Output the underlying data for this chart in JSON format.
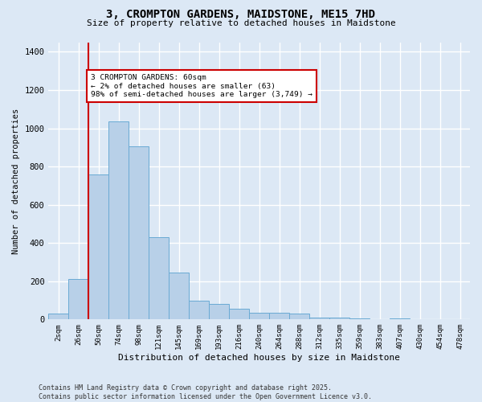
{
  "title": "3, CROMPTON GARDENS, MAIDSTONE, ME15 7HD",
  "subtitle": "Size of property relative to detached houses in Maidstone",
  "xlabel": "Distribution of detached houses by size in Maidstone",
  "ylabel": "Number of detached properties",
  "footnote": "Contains HM Land Registry data © Crown copyright and database right 2025.\nContains public sector information licensed under the Open Government Licence v3.0.",
  "annotation_text": "3 CROMPTON GARDENS: 60sqm\n← 2% of detached houses are smaller (63)\n98% of semi-detached houses are larger (3,749) →",
  "bar_color": "#b8d0e8",
  "bar_edge_color": "#6aaad4",
  "background_color": "#dce8f5",
  "grid_color": "#ffffff",
  "vline_color": "#cc0000",
  "vline_x": 1.5,
  "annotation_box_color": "#cc0000",
  "categories": [
    "2sqm",
    "26sqm",
    "50sqm",
    "74sqm",
    "98sqm",
    "121sqm",
    "145sqm",
    "169sqm",
    "193sqm",
    "216sqm",
    "240sqm",
    "264sqm",
    "288sqm",
    "312sqm",
    "335sqm",
    "359sqm",
    "383sqm",
    "407sqm",
    "430sqm",
    "454sqm",
    "478sqm"
  ],
  "values": [
    30,
    210,
    760,
    1035,
    905,
    430,
    245,
    100,
    80,
    55,
    35,
    35,
    30,
    10,
    10,
    5,
    2,
    5,
    2,
    2,
    2
  ],
  "ylim": [
    0,
    1450
  ],
  "yticks": [
    0,
    200,
    400,
    600,
    800,
    1000,
    1200,
    1400
  ]
}
